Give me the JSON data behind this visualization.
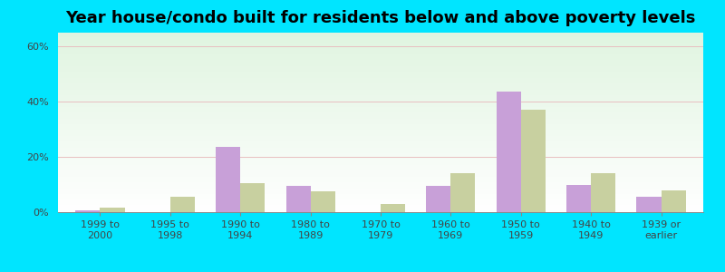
{
  "title": "Year house/condo built for residents below and above poverty levels",
  "categories": [
    "1999 to\n2000",
    "1995 to\n1998",
    "1990 to\n1994",
    "1980 to\n1989",
    "1970 to\n1979",
    "1960 to\n1969",
    "1950 to\n1959",
    "1940 to\n1949",
    "1939 or\nearlier"
  ],
  "below_poverty": [
    0.5,
    0.0,
    23.5,
    9.5,
    0.0,
    9.5,
    43.5,
    10.0,
    5.5
  ],
  "above_poverty": [
    1.5,
    5.5,
    10.5,
    7.5,
    3.0,
    14.0,
    37.0,
    14.0,
    8.0
  ],
  "bar_color_below": "#c8a0d8",
  "bar_color_above": "#c8d0a0",
  "ylabel_ticks": [
    "0%",
    "20%",
    "40%",
    "60%"
  ],
  "ytick_vals": [
    0,
    20,
    40,
    60
  ],
  "ylim": [
    0,
    65
  ],
  "bg_color_outer": "#00e5ff",
  "title_fontsize": 13,
  "tick_fontsize": 8,
  "bar_width": 0.35,
  "grid_color": "#e0e8e0"
}
